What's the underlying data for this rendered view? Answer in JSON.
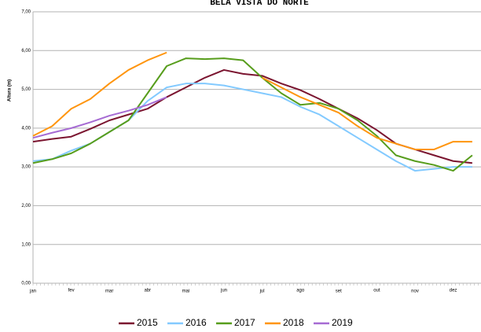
{
  "chart_data": {
    "type": "line",
    "title": "BELA VISTA DO NORTE",
    "y_label": "Altura (m)",
    "categories": [
      "jan",
      null,
      "fev",
      null,
      "mar",
      null,
      "abr",
      null,
      "mai",
      null,
      "jun",
      null,
      "jul",
      null,
      "ago",
      null,
      "set",
      null,
      "out",
      null,
      "nov",
      null,
      "dez",
      null
    ],
    "series": [
      {
        "name": "2015",
        "color": "#7b1530",
        "values": [
          3.65,
          3.72,
          3.78,
          3.98,
          4.2,
          4.35,
          4.5,
          4.8,
          5.05,
          5.3,
          5.5,
          5.4,
          5.35,
          5.15,
          4.98,
          4.75,
          4.5,
          4.25,
          3.95,
          3.6,
          3.45,
          3.3,
          3.15,
          3.1
        ]
      },
      {
        "name": "2016",
        "color": "#83caff",
        "values": [
          3.15,
          3.2,
          3.42,
          3.6,
          3.9,
          4.2,
          4.7,
          5.05,
          5.15,
          5.15,
          5.1,
          5.0,
          4.9,
          4.8,
          4.55,
          4.35,
          4.05,
          3.75,
          3.45,
          3.15,
          2.9,
          2.95,
          3.0,
          3.0
        ]
      },
      {
        "name": "2017",
        "color": "#579d1c",
        "values": [
          3.1,
          3.2,
          3.35,
          3.6,
          3.9,
          4.2,
          4.9,
          5.6,
          5.8,
          5.78,
          5.8,
          5.75,
          5.3,
          4.9,
          4.6,
          4.65,
          4.5,
          4.2,
          3.8,
          3.3,
          3.15,
          3.05,
          2.9,
          3.3
        ]
      },
      {
        "name": "2018",
        "color": "#ff950e",
        "values": [
          3.8,
          4.05,
          4.5,
          4.75,
          5.15,
          5.5,
          5.75,
          5.95,
          null,
          null,
          null,
          null,
          5.3,
          5.05,
          4.8,
          4.6,
          4.4,
          4.05,
          3.75,
          3.6,
          3.45,
          3.45,
          3.65,
          3.65
        ]
      },
      {
        "name": "2019",
        "color": "#a66bd3",
        "values": [
          3.75,
          3.88,
          4.0,
          4.15,
          4.32,
          4.45,
          4.6,
          4.8,
          null,
          null,
          null,
          null,
          null,
          null,
          null,
          null,
          null,
          null,
          null,
          null,
          null,
          null,
          null,
          null
        ]
      }
    ],
    "ylim": [
      0,
      7
    ],
    "yticks": [
      {
        "value": 0,
        "label": "0,00"
      },
      {
        "value": 1,
        "label": "1,00"
      },
      {
        "value": 2,
        "label": "2,00"
      },
      {
        "value": 3,
        "label": "3,00"
      },
      {
        "value": 4,
        "label": "4,00"
      },
      {
        "value": 5,
        "label": "5,00"
      },
      {
        "value": 6,
        "label": "6,00"
      },
      {
        "value": 7,
        "label": "7,00"
      }
    ],
    "grid": true
  }
}
